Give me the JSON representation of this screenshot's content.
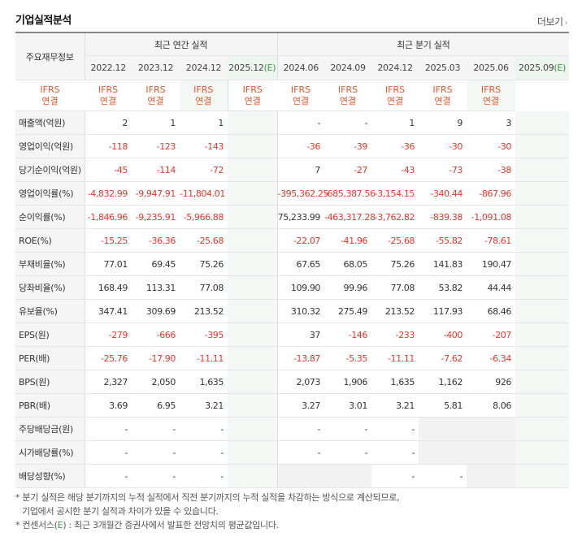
{
  "title": "기업실적분석",
  "more_label": "더보기",
  "header": {
    "corner_label": "주요재무정보",
    "annual_label": "최근 연간 실적",
    "quarter_label": "최근 분기 실적",
    "periods": [
      "2022.12",
      "2023.12",
      "2024.12",
      "2025.12",
      "2024.06",
      "2024.09",
      "2024.12",
      "2025.03",
      "2025.06",
      "2025.09"
    ],
    "est_suffix": "(E)",
    "ifrs_line1": "IFRS",
    "ifrs_line2": "연결"
  },
  "rows": [
    {
      "label": "매출액(억원)",
      "values": [
        "2",
        "1",
        "1",
        "",
        "-",
        "-",
        "1",
        "9",
        "3",
        ""
      ]
    },
    {
      "label": "영업이익(억원)",
      "values": [
        "-118",
        "-123",
        "-143",
        "",
        "-36",
        "-39",
        "-36",
        "-30",
        "-30",
        ""
      ]
    },
    {
      "label": "당기순이익(억원)",
      "values": [
        "-45",
        "-114",
        "-72",
        "",
        "7",
        "-27",
        "-43",
        "-73",
        "-38",
        ""
      ]
    },
    {
      "label": "영업이익률(%)",
      "values": [
        "-4,832.99",
        "-9,947.91",
        "-11,804.01",
        "",
        "-395,362.25",
        "-685,387.56",
        "-3,154.15",
        "-340.44",
        "-867.96",
        ""
      ]
    },
    {
      "label": "순이익률(%)",
      "values": [
        "-1,846.96",
        "-9,235.91",
        "-5,966.88",
        "",
        "75,233.99",
        "-463,317.28",
        "-3,762.82",
        "-839.38",
        "-1,091.08",
        ""
      ]
    },
    {
      "label": "ROE(%)",
      "values": [
        "-15.25",
        "-36.36",
        "-25.68",
        "",
        "-22.07",
        "-41.96",
        "-25.68",
        "-55.82",
        "-78.61",
        ""
      ]
    },
    {
      "label": "부채비율(%)",
      "values": [
        "77.01",
        "69.45",
        "75.26",
        "",
        "67.65",
        "68.05",
        "75.26",
        "141.83",
        "190.47",
        ""
      ]
    },
    {
      "label": "당좌비율(%)",
      "values": [
        "168.49",
        "113.31",
        "77.08",
        "",
        "109.90",
        "99.96",
        "77.08",
        "53.82",
        "44.44",
        ""
      ]
    },
    {
      "label": "유보율(%)",
      "values": [
        "347.41",
        "309.69",
        "213.52",
        "",
        "310.32",
        "275.49",
        "213.52",
        "117.93",
        "68.46",
        ""
      ]
    },
    {
      "label": "EPS(원)",
      "values": [
        "-279",
        "-666",
        "-395",
        "",
        "37",
        "-146",
        "-233",
        "-400",
        "-207",
        ""
      ]
    },
    {
      "label": "PER(배)",
      "values": [
        "-25.76",
        "-17.90",
        "-11.11",
        "",
        "-13.87",
        "-5.35",
        "-11.11",
        "-7.62",
        "-6.34",
        ""
      ]
    },
    {
      "label": "BPS(원)",
      "values": [
        "2,327",
        "2,050",
        "1,635",
        "",
        "2,073",
        "1,906",
        "1,635",
        "1,162",
        "926",
        ""
      ]
    },
    {
      "label": "PBR(배)",
      "values": [
        "3.69",
        "6.95",
        "3.21",
        "",
        "3.27",
        "3.01",
        "3.21",
        "5.81",
        "8.06",
        ""
      ]
    },
    {
      "label": "주당배당금(원)",
      "values": [
        "-",
        "-",
        "-",
        "",
        "-",
        "-",
        "-",
        "",
        "",
        ""
      ]
    },
    {
      "label": "시가배당률(%)",
      "values": [
        "-",
        "-",
        "-",
        "",
        "-",
        "-",
        "-",
        "",
        "",
        ""
      ]
    },
    {
      "label": "배당성향(%)",
      "values": [
        "-",
        "-",
        "-",
        "",
        "",
        "",
        "-",
        "-",
        "",
        ""
      ]
    }
  ],
  "notes": {
    "line1": "* 분기 실적은 해당 분기까지의 누적 실적에서 직전 분기까지의 누적 실적을 차감하는 방식으로 계산되므로,",
    "line2": "기업에서 공시한 분기 실적과 차이가 있을 수 있습니다.",
    "line3_prefix": "* 컨센서스(",
    "line3_mark": "E",
    "line3_suffix": ") : 최근 3개월간 증권사에서 발표한 전망치의 평균값입니다."
  },
  "colors": {
    "negative": "#e8352c",
    "ifrs": "#e4572e",
    "estimate_mark": "#3f9a45"
  }
}
